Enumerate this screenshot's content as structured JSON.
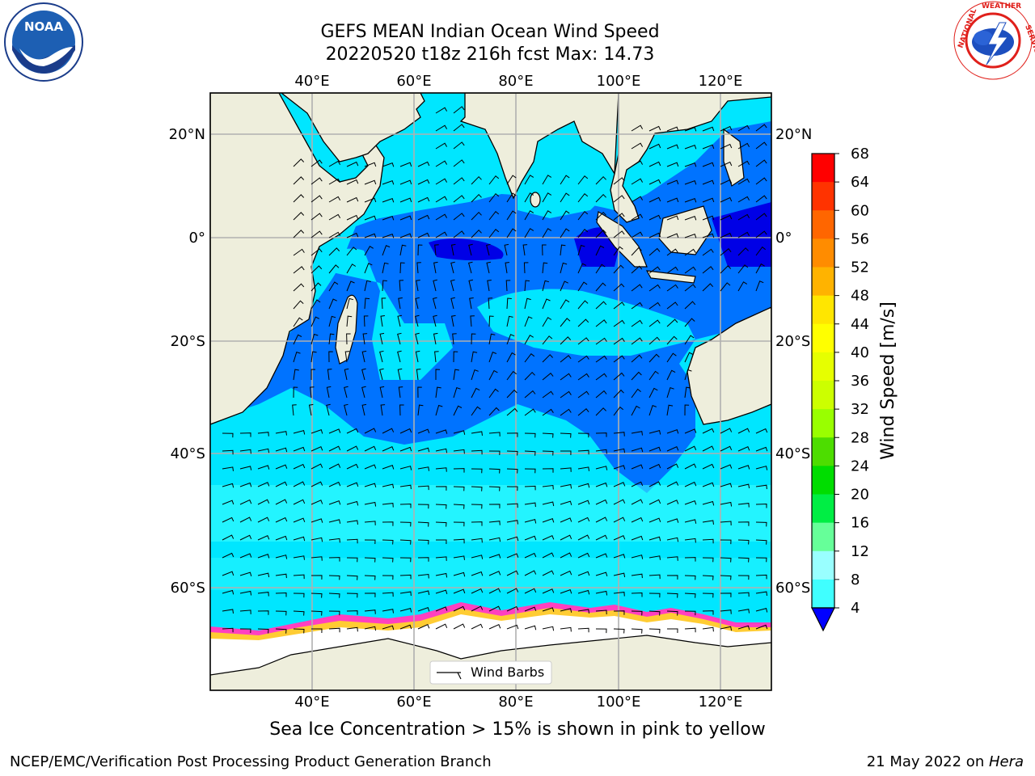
{
  "header": {
    "title_line1": "GEFS MEAN Indian Ocean Wind Speed",
    "title_line2": "20220520 t18z 216h fcst   Max: 14.73"
  },
  "map": {
    "lon_labels_top": [
      "40°E",
      "60°E",
      "80°E",
      "100°E",
      "120°E"
    ],
    "lon_labels_bottom": [
      "40°E",
      "60°E",
      "80°E",
      "100°E",
      "120°E"
    ],
    "lat_labels_left": [
      "20°N",
      "0°",
      "20°S",
      "40°S",
      "60°S"
    ],
    "lat_labels_right": [
      "20°N",
      "0°",
      "20°S",
      "40°S",
      "60°S"
    ],
    "legend_label": "Wind Barbs",
    "colors": {
      "land": "#eeeedc",
      "ocean_4_8": "#0073ff",
      "ocean_8_12": "#00e6ff",
      "ocean_12_16": "#40ffff",
      "ocean_low": "#0000e6",
      "ice": "#ffffff",
      "ice_edge": "#ff40c0"
    }
  },
  "colorbar": {
    "title": "Wind Speed [m/s]",
    "ticks": [
      "68",
      "64",
      "60",
      "56",
      "52",
      "48",
      "44",
      "40",
      "36",
      "32",
      "28",
      "24",
      "20",
      "16",
      "12",
      "8",
      "4"
    ],
    "colors": [
      "#ff0000",
      "#ff3300",
      "#ff6600",
      "#ff8c00",
      "#ffb300",
      "#ffe600",
      "#ffff00",
      "#e6ff00",
      "#ccff00",
      "#99ff00",
      "#4ddd00",
      "#00dd00",
      "#00ee44",
      "#66ff99",
      "#99ffff",
      "#40ffff",
      "#00ffff",
      "#0073ff",
      "#0000ff"
    ]
  },
  "caption": "Sea Ice Concentration > 15% is shown in pink to yellow",
  "footer": {
    "left": "NCEP/EMC/Verification Post Processing Product Generation Branch",
    "right_date": "21 May 2022 on ",
    "right_machine": "Hera"
  },
  "logos": {
    "noaa_text": "NOAA",
    "nws_text": "NATIONAL WEATHER SERVICE"
  }
}
